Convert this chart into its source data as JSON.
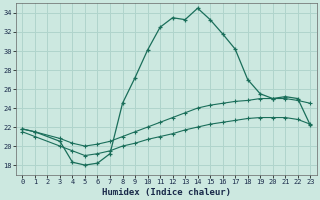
{
  "xlabel": "Humidex (Indice chaleur)",
  "ylabel": "",
  "xlim": [
    -0.5,
    23.5
  ],
  "ylim": [
    17,
    35
  ],
  "yticks": [
    18,
    20,
    22,
    24,
    26,
    28,
    30,
    32,
    34
  ],
  "xticks": [
    0,
    1,
    2,
    3,
    4,
    5,
    6,
    7,
    8,
    9,
    10,
    11,
    12,
    13,
    14,
    15,
    16,
    17,
    18,
    19,
    20,
    21,
    22,
    23
  ],
  "bg_color": "#cce8e0",
  "grid_color": "#b0d4cc",
  "line_color": "#1a6e5a",
  "curve1_x": [
    0,
    1,
    3,
    4,
    5,
    6,
    7,
    8,
    9,
    10,
    11,
    12,
    13,
    14,
    15,
    16,
    17,
    18,
    19,
    20,
    21,
    22,
    23
  ],
  "curve1_y": [
    21.8,
    21.5,
    20.5,
    18.3,
    18.0,
    18.2,
    19.2,
    24.5,
    27.2,
    30.1,
    32.5,
    33.5,
    33.3,
    34.5,
    33.3,
    31.8,
    30.2,
    27.0,
    25.5,
    25.0,
    25.2,
    25.0,
    22.2
  ],
  "curve2_x": [
    0,
    1,
    3,
    4,
    5,
    6,
    7,
    8,
    9,
    10,
    11,
    12,
    13,
    14,
    15,
    16,
    17,
    18,
    19,
    20,
    21,
    22,
    23
  ],
  "curve2_y": [
    21.8,
    21.5,
    20.8,
    20.3,
    20.0,
    20.2,
    20.5,
    21.0,
    21.5,
    22.0,
    22.5,
    23.0,
    23.5,
    24.0,
    24.3,
    24.5,
    24.7,
    24.8,
    25.0,
    25.0,
    25.0,
    24.8,
    24.5
  ],
  "curve3_x": [
    0,
    1,
    3,
    4,
    5,
    6,
    7,
    8,
    9,
    10,
    11,
    12,
    13,
    14,
    15,
    16,
    17,
    18,
    19,
    20,
    21,
    22,
    23
  ],
  "curve3_y": [
    21.5,
    21.0,
    20.0,
    19.5,
    19.0,
    19.2,
    19.5,
    20.0,
    20.3,
    20.7,
    21.0,
    21.3,
    21.7,
    22.0,
    22.3,
    22.5,
    22.7,
    22.9,
    23.0,
    23.0,
    23.0,
    22.8,
    22.3
  ]
}
